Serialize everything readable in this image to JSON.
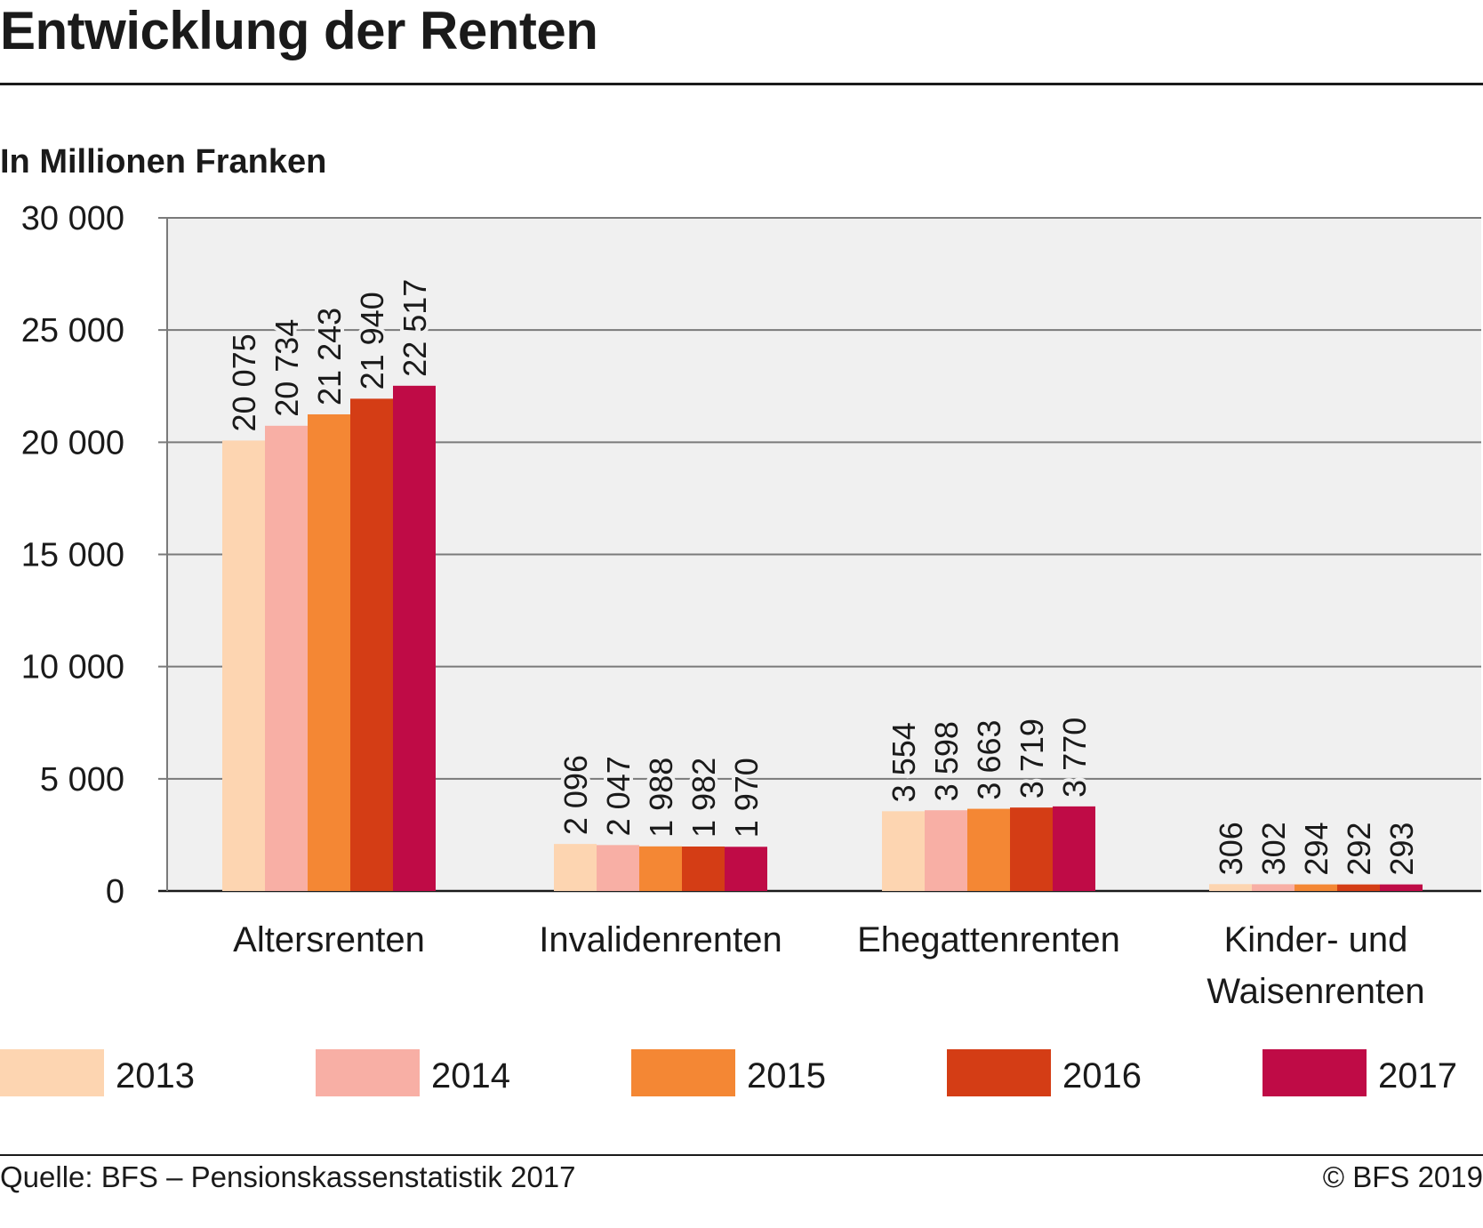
{
  "title": "Entwicklung der Renten",
  "unit_label": "In Millionen Franken",
  "source": "Quelle: BFS – Pensionskassenstatistik  2017",
  "copyright": "© BFS 2019",
  "chart_data": {
    "type": "bar",
    "title": "Entwicklung der Renten",
    "ylabel": "In Millionen Franken",
    "xlabel": "",
    "ylim": [
      0,
      30000
    ],
    "yticks": [
      0,
      5000,
      10000,
      15000,
      20000,
      25000,
      30000
    ],
    "ytick_labels": [
      "0",
      "5 000",
      "10 000",
      "15 000",
      "20 000",
      "25 000",
      "30 000"
    ],
    "grid": true,
    "legend_position": "bottom",
    "categories": [
      "Altersrenten",
      "Invalidenrenten",
      "Ehegattenrenten",
      "Kinder- und\nWaisenrenten"
    ],
    "series": [
      {
        "name": "2013",
        "color": "#fdd5b1",
        "values": [
          20075,
          2096,
          3554,
          306
        ],
        "labels": [
          "20 075",
          "2 096",
          "3 554",
          "306"
        ]
      },
      {
        "name": "2014",
        "color": "#f8afa5",
        "values": [
          20734,
          2047,
          3598,
          302
        ],
        "labels": [
          "20 734",
          "2 047",
          "3 598",
          "302"
        ]
      },
      {
        "name": "2015",
        "color": "#f48734",
        "values": [
          21243,
          1988,
          3663,
          294
        ],
        "labels": [
          "21 243",
          "1 988",
          "3 663",
          "294"
        ]
      },
      {
        "name": "2016",
        "color": "#d43d15",
        "values": [
          21940,
          1982,
          3719,
          292
        ],
        "labels": [
          "21 940",
          "1 982",
          "3 719",
          "292"
        ]
      },
      {
        "name": "2017",
        "color": "#bf0b46",
        "values": [
          22517,
          1970,
          3770,
          293
        ],
        "labels": [
          "22 517",
          "1 970",
          "3 770",
          "293"
        ]
      }
    ]
  }
}
